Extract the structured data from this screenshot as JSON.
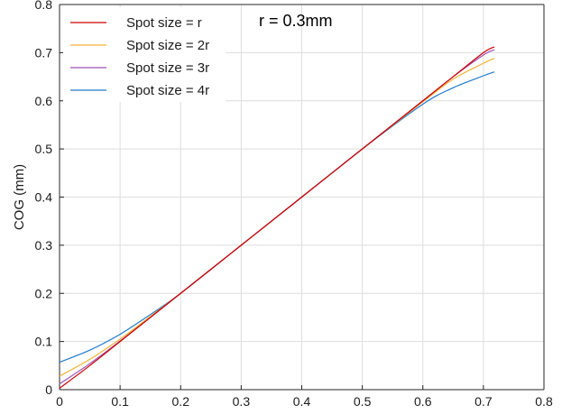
{
  "chart_data": {
    "type": "line",
    "title": "",
    "xlabel": "",
    "ylabel": "COG (mm)",
    "xlim": [
      0,
      0.8
    ],
    "ylim": [
      0,
      0.8
    ],
    "xticks": [
      "0",
      "0.1",
      "0.2",
      "0.3",
      "0.4",
      "0.5",
      "0.6",
      "0.7",
      "0.8"
    ],
    "yticks": [
      "0",
      "0.1",
      "0.2",
      "0.3",
      "0.4",
      "0.5",
      "0.6",
      "0.7",
      "0.8"
    ],
    "grid": true,
    "legend_position": "top-left",
    "annotation": "r = 0.3mm",
    "series": [
      {
        "name": "Spot size = r",
        "color": "#cc0000",
        "x": [
          0,
          0.05,
          0.1,
          0.15,
          0.2,
          0.3,
          0.4,
          0.5,
          0.6,
          0.65,
          0.7,
          0.718
        ],
        "y": [
          0.003,
          0.05,
          0.1,
          0.15,
          0.2,
          0.3,
          0.4,
          0.5,
          0.6,
          0.65,
          0.7,
          0.712
        ]
      },
      {
        "name": "Spot size = 2r",
        "color": "#f2b233",
        "x": [
          0,
          0.05,
          0.1,
          0.15,
          0.2,
          0.3,
          0.4,
          0.5,
          0.6,
          0.65,
          0.7,
          0.718
        ],
        "y": [
          0.028,
          0.063,
          0.105,
          0.152,
          0.2,
          0.3,
          0.4,
          0.5,
          0.598,
          0.645,
          0.678,
          0.688
        ]
      },
      {
        "name": "Spot size = 3r",
        "color": "#9b4fb3",
        "x": [
          0,
          0.05,
          0.1,
          0.15,
          0.2,
          0.3,
          0.4,
          0.5,
          0.6,
          0.65,
          0.7,
          0.718
        ],
        "y": [
          0.012,
          0.054,
          0.101,
          0.15,
          0.2,
          0.3,
          0.4,
          0.5,
          0.6,
          0.65,
          0.695,
          0.706
        ]
      },
      {
        "name": "Spot size = 4r",
        "color": "#1f7bc9",
        "x": [
          0,
          0.05,
          0.1,
          0.15,
          0.2,
          0.3,
          0.4,
          0.5,
          0.6,
          0.65,
          0.7,
          0.718
        ],
        "y": [
          0.057,
          0.082,
          0.115,
          0.156,
          0.2,
          0.3,
          0.4,
          0.5,
          0.593,
          0.627,
          0.652,
          0.66
        ]
      }
    ]
  }
}
